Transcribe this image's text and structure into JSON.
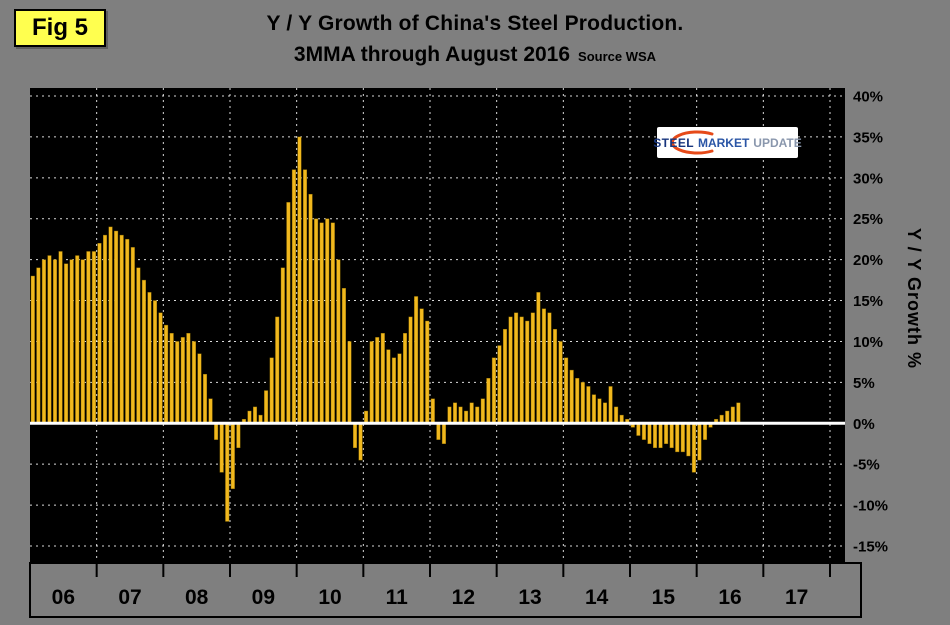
{
  "figure": {
    "fig_label": "Fig 5",
    "title": "Y / Y Growth of China's Steel Production.",
    "subtitle": "3MMA through August 2016",
    "source": "Source WSA",
    "ylabel": "Y / Y Growth %"
  },
  "logo": {
    "steel": "STEEL",
    "market": "MARKET",
    "update": "UPDATE"
  },
  "chart_data": {
    "type": "bar",
    "title": "Y / Y Growth of China's Steel Production. 3MMA through August 2016",
    "xlabel": "",
    "ylabel": "Y / Y Growth %",
    "ylim": [
      -15,
      40
    ],
    "ytick_step": 5,
    "ytick_labels": [
      "40%",
      "35%",
      "30%",
      "25%",
      "20%",
      "15%",
      "10%",
      "5%",
      "0%",
      "-5%",
      "-10%",
      "-15%"
    ],
    "x_year_labels": [
      "06",
      "07",
      "08",
      "09",
      "10",
      "11",
      "12",
      "13",
      "14",
      "15",
      "16",
      "17"
    ],
    "series_start": "Jan 2006",
    "series_end": "Aug 2016",
    "grid": "dashed",
    "plot_background": "#000000",
    "page_background": "#7f7f7f",
    "bar_color": "#F1B81E",
    "zero_line_color": "#ffffff",
    "values_pct": [
      18,
      19,
      20,
      20.5,
      20,
      21,
      19.5,
      20,
      20.5,
      20,
      21,
      21,
      22,
      23,
      24,
      23.5,
      23,
      22.5,
      21.5,
      19,
      17.5,
      16,
      15,
      13.5,
      12,
      11,
      10,
      10.5,
      11,
      10,
      8.5,
      6,
      3,
      -2,
      -6,
      -12,
      -8,
      -3,
      0.5,
      1.5,
      2,
      1,
      4,
      8,
      13,
      19,
      27,
      31,
      35,
      31,
      28,
      25,
      24.5,
      25,
      24.5,
      20,
      16.5,
      10,
      -3,
      -4.5,
      1.5,
      10,
      10.5,
      11,
      9,
      8,
      8.5,
      11,
      13,
      15.5,
      14,
      12.5,
      3,
      -2,
      -2.5,
      2,
      2.5,
      2,
      1.5,
      2.5,
      2,
      3,
      5.5,
      8,
      9.5,
      11.5,
      13,
      13.5,
      13,
      12.5,
      13.5,
      16,
      14,
      13.5,
      11.5,
      10,
      8,
      6.5,
      5.5,
      5,
      4.5,
      3.5,
      3,
      2.5,
      4.5,
      2,
      1,
      0.5,
      -0.5,
      -1.5,
      -2,
      -2.5,
      -3,
      -3,
      -2.5,
      -3,
      -3.5,
      -3.5,
      -4,
      -6,
      -4.5,
      -2,
      -0.5,
      0.5,
      1,
      1.5,
      2,
      2.5
    ]
  }
}
